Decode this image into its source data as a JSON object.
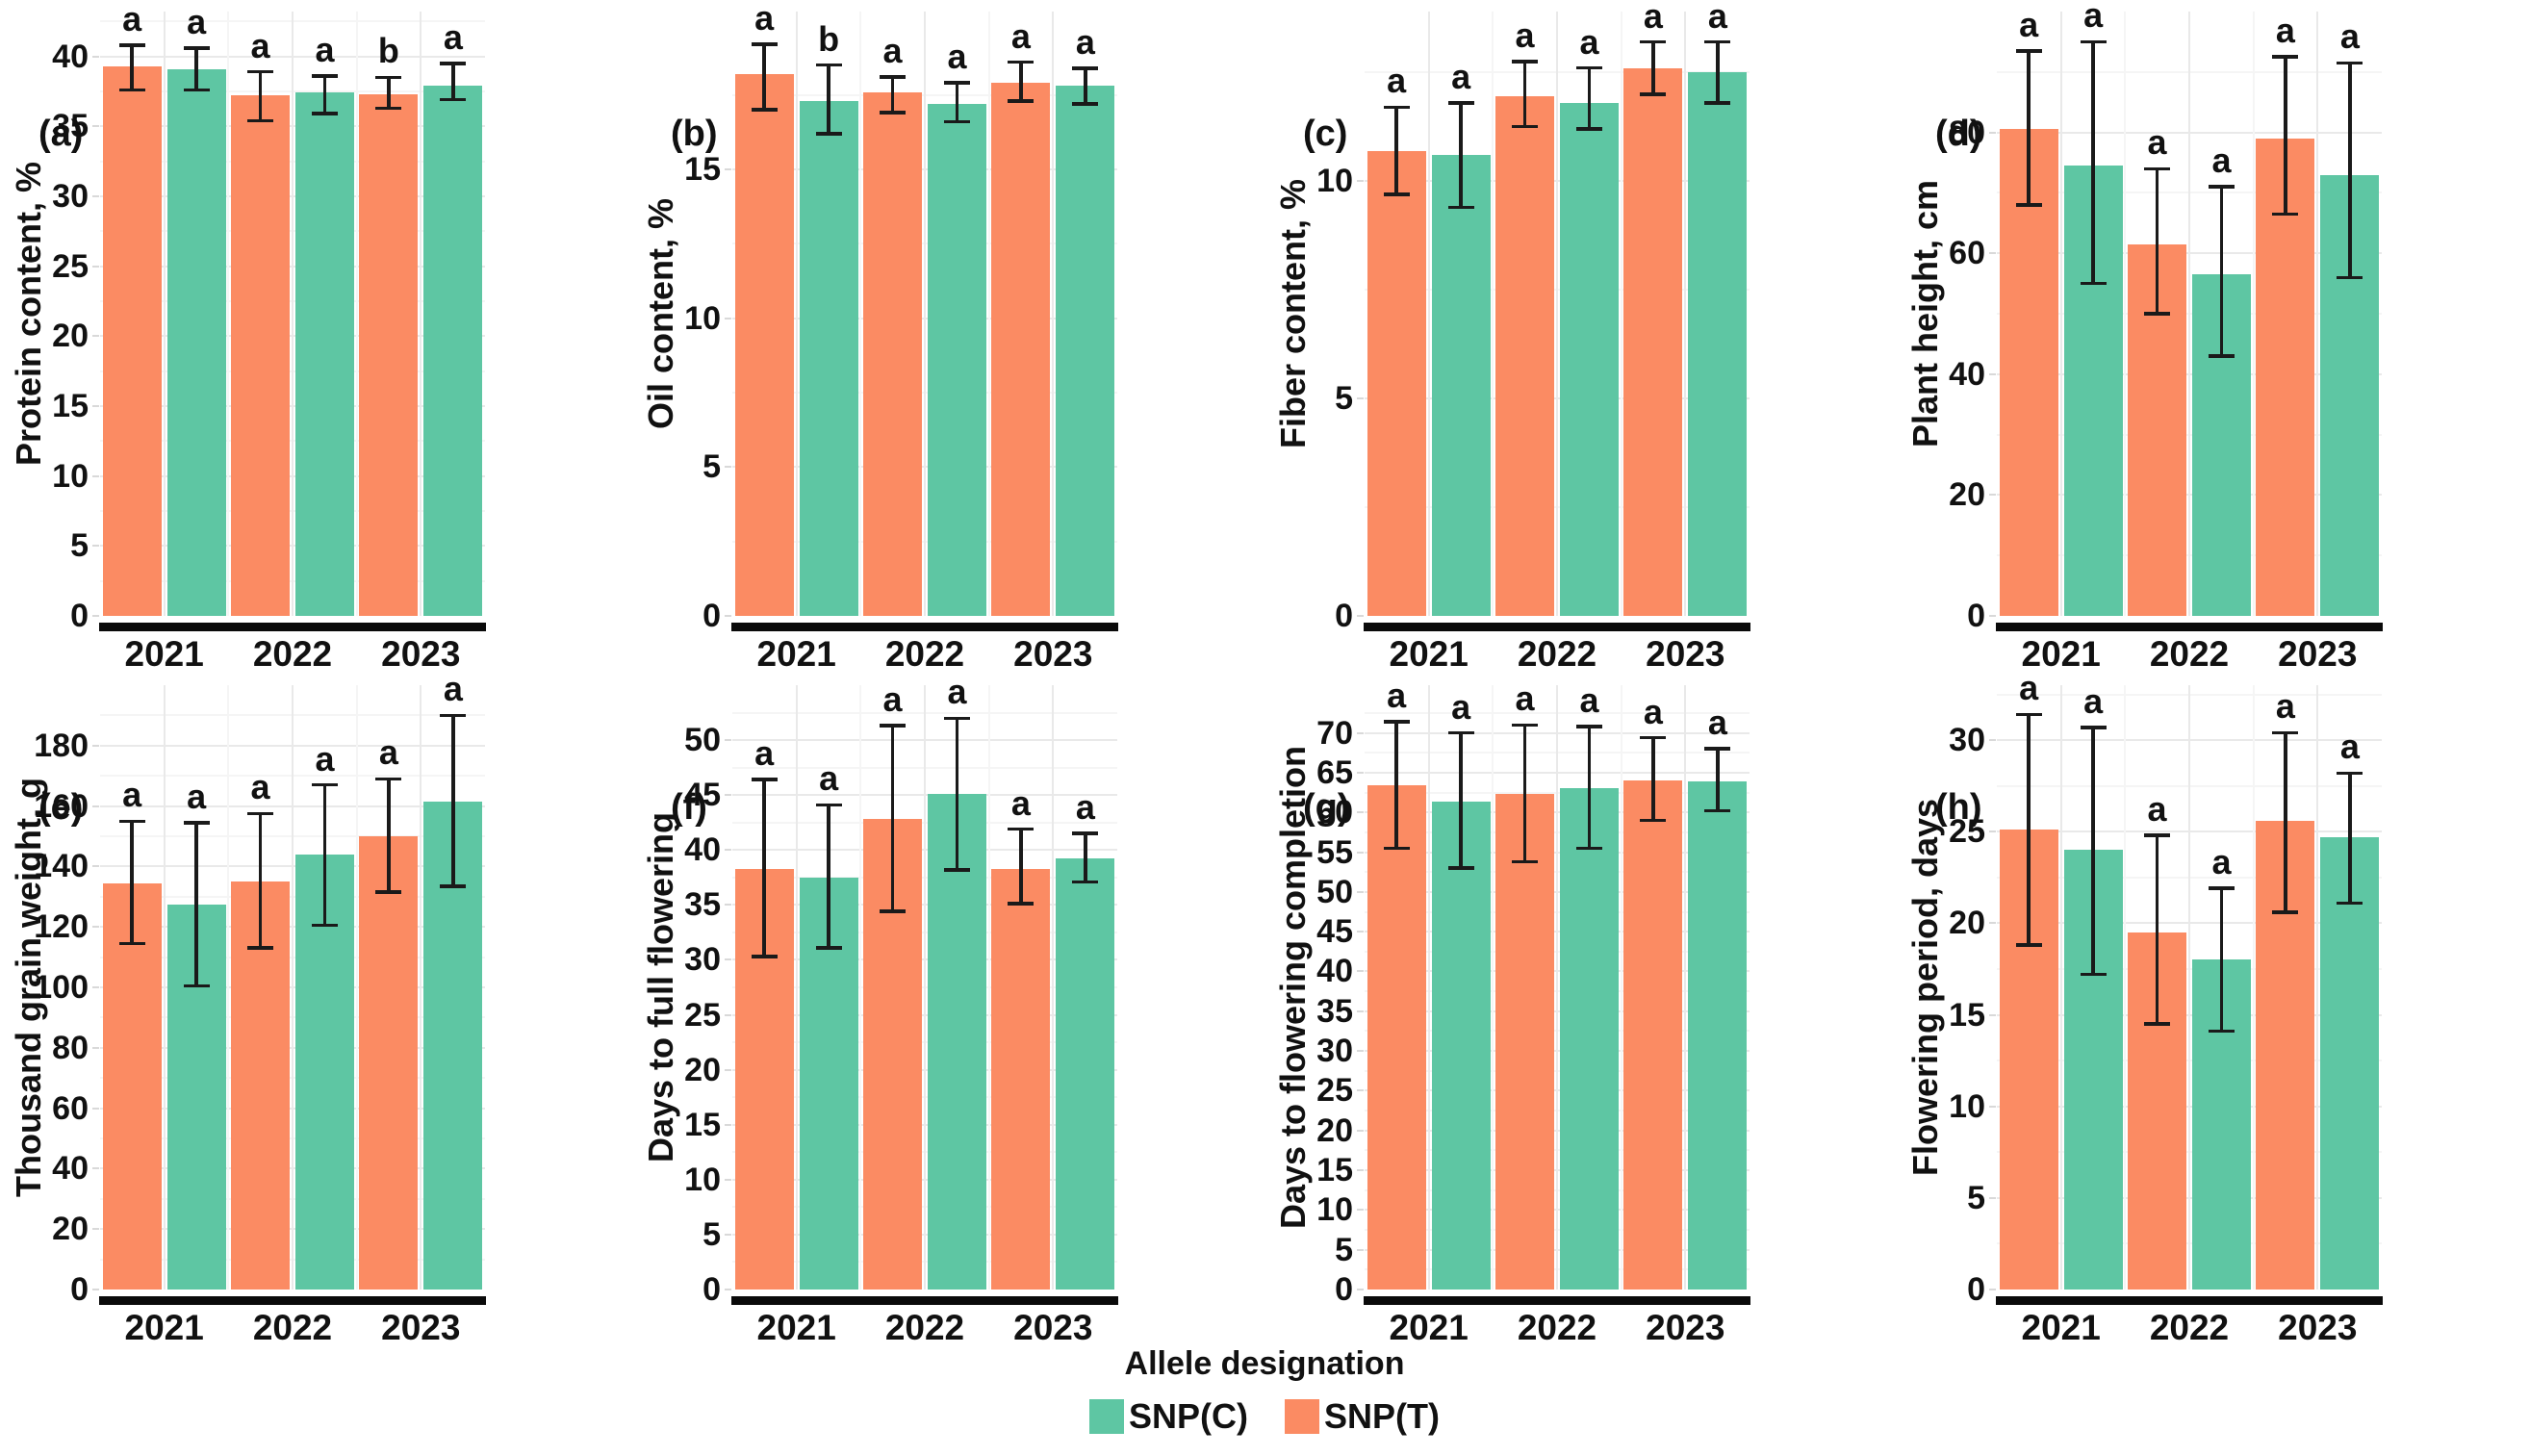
{
  "legend": {
    "title": "Allele designation",
    "items": [
      {
        "label": "SNP(C)",
        "color": "#5EC6A3"
      },
      {
        "label": "SNP(T)",
        "color": "#FB8B63"
      }
    ]
  },
  "colors": {
    "snp_t_orange": "#FB8B63",
    "snp_c_green": "#5EC6A3",
    "error_bar": "#1a1a1a",
    "axis_underline": "#0a0a0a",
    "grid_major": "#e9e9e9",
    "grid_minor": "#f5f5f5"
  },
  "chart_data": [
    {
      "type": "bar",
      "panel_label": "(a)",
      "ylabel": "Protein content, %",
      "categories": [
        "2021",
        "2022",
        "2023"
      ],
      "yticks": [
        0,
        5,
        10,
        15,
        20,
        25,
        30,
        35,
        40
      ],
      "tick_step": 5,
      "ylim": [
        0,
        43.2
      ],
      "series": [
        {
          "name": "SNP(T)",
          "values": [
            39.3,
            37.2,
            37.3
          ],
          "err_low": [
            37.6,
            35.4,
            36.3
          ],
          "err_high": [
            40.8,
            38.9,
            38.5
          ],
          "letters": [
            "a",
            "a",
            "b"
          ]
        },
        {
          "name": "SNP(C)",
          "values": [
            39.1,
            37.4,
            37.9
          ],
          "err_low": [
            37.6,
            35.9,
            36.9
          ],
          "err_high": [
            40.6,
            38.6,
            39.5
          ],
          "letters": [
            "a",
            "a",
            "a"
          ]
        }
      ]
    },
    {
      "type": "bar",
      "panel_label": "(b)",
      "ylabel": "Oil content, %",
      "categories": [
        "2021",
        "2022",
        "2023"
      ],
      "yticks": [
        0,
        5,
        10,
        15
      ],
      "tick_step": 5,
      "ylim": [
        0,
        20.3
      ],
      "series": [
        {
          "name": "SNP(T)",
          "values": [
            18.2,
            17.6,
            17.9
          ],
          "err_low": [
            17.0,
            16.9,
            17.3
          ],
          "err_high": [
            19.2,
            18.1,
            18.6
          ],
          "letters": [
            "a",
            "a",
            "a"
          ]
        },
        {
          "name": "SNP(C)",
          "values": [
            17.3,
            17.2,
            17.8
          ],
          "err_low": [
            16.2,
            16.6,
            17.2
          ],
          "err_high": [
            18.5,
            17.9,
            18.4
          ],
          "letters": [
            "b",
            "a",
            "a"
          ]
        }
      ]
    },
    {
      "type": "bar",
      "panel_label": "(c)",
      "ylabel": "Fiber content, %",
      "categories": [
        "2021",
        "2022",
        "2023"
      ],
      "yticks": [
        0,
        5,
        10
      ],
      "tick_step": 5,
      "ylim": [
        0,
        13.9
      ],
      "series": [
        {
          "name": "SNP(T)",
          "values": [
            10.7,
            11.95,
            12.6
          ],
          "err_low": [
            9.7,
            11.25,
            12.0
          ],
          "err_high": [
            11.7,
            12.75,
            13.2
          ],
          "letters": [
            "a",
            "a",
            "a"
          ]
        },
        {
          "name": "SNP(C)",
          "values": [
            10.6,
            11.8,
            12.5
          ],
          "err_low": [
            9.4,
            11.2,
            11.8
          ],
          "err_high": [
            11.8,
            12.6,
            13.2
          ],
          "letters": [
            "a",
            "a",
            "a"
          ]
        }
      ]
    },
    {
      "type": "bar",
      "panel_label": "(d)",
      "ylabel": "Plant height, cm",
      "categories": [
        "2021",
        "2022",
        "2023"
      ],
      "yticks": [
        0,
        20,
        40,
        60,
        80
      ],
      "tick_step": 20,
      "ylim": [
        0,
        100
      ],
      "series": [
        {
          "name": "SNP(T)",
          "values": [
            80.5,
            61.5,
            79.0
          ],
          "err_low": [
            68.0,
            50.0,
            66.5
          ],
          "err_high": [
            93.5,
            74.0,
            92.5
          ],
          "letters": [
            "a",
            "a",
            "a"
          ]
        },
        {
          "name": "SNP(C)",
          "values": [
            74.5,
            56.5,
            73.0
          ],
          "err_low": [
            55.0,
            43.0,
            56.0
          ],
          "err_high": [
            95.0,
            71.0,
            91.5
          ],
          "letters": [
            "a",
            "a",
            "a"
          ]
        }
      ]
    },
    {
      "type": "bar",
      "panel_label": "(e)",
      "ylabel": "Thousand grain weight, g",
      "categories": [
        "2021",
        "2022",
        "2023"
      ],
      "yticks": [
        0,
        20,
        40,
        60,
        80,
        100,
        120,
        140,
        160,
        180
      ],
      "tick_step": 20,
      "ylim": [
        0,
        200
      ],
      "series": [
        {
          "name": "SNP(T)",
          "values": [
            134.5,
            135.0,
            150.0
          ],
          "err_low": [
            114.5,
            113.0,
            131.5
          ],
          "err_high": [
            155.0,
            157.5,
            169.0
          ],
          "letters": [
            "a",
            "a",
            "a"
          ]
        },
        {
          "name": "SNP(C)",
          "values": [
            127.5,
            144.0,
            161.5
          ],
          "err_low": [
            100.5,
            120.5,
            133.5
          ],
          "err_high": [
            154.5,
            167.0,
            190.0
          ],
          "letters": [
            "a",
            "a",
            "a"
          ]
        }
      ]
    },
    {
      "type": "bar",
      "panel_label": "(f)",
      "ylabel": "Days to full flowering",
      "categories": [
        "2021",
        "2022",
        "2023"
      ],
      "yticks": [
        0,
        5,
        10,
        15,
        20,
        25,
        30,
        35,
        40,
        45,
        50
      ],
      "tick_step": 5,
      "ylim": [
        0,
        55
      ],
      "series": [
        {
          "name": "SNP(T)",
          "values": [
            38.3,
            42.8,
            38.3
          ],
          "err_low": [
            30.3,
            34.4,
            35.1
          ],
          "err_high": [
            46.4,
            51.3,
            41.9
          ],
          "letters": [
            "a",
            "a",
            "a"
          ]
        },
        {
          "name": "SNP(C)",
          "values": [
            37.5,
            45.1,
            39.2
          ],
          "err_low": [
            31.1,
            38.2,
            37.1
          ],
          "err_high": [
            44.1,
            52.0,
            41.5
          ],
          "letters": [
            "a",
            "a",
            "a"
          ]
        }
      ]
    },
    {
      "type": "bar",
      "panel_label": "(g)",
      "ylabel": "Days to flowering completion",
      "categories": [
        "2021",
        "2022",
        "2023"
      ],
      "yticks": [
        0,
        5,
        10,
        15,
        20,
        25,
        30,
        35,
        40,
        45,
        50,
        55,
        60,
        65,
        70
      ],
      "tick_step": 5,
      "ylim": [
        0,
        76
      ],
      "series": [
        {
          "name": "SNP(T)",
          "values": [
            63.4,
            62.3,
            64.0
          ],
          "err_low": [
            55.5,
            53.8,
            59.0
          ],
          "err_high": [
            71.4,
            71.0,
            69.4
          ],
          "letters": [
            "a",
            "a",
            "a"
          ]
        },
        {
          "name": "SNP(C)",
          "values": [
            61.3,
            63.0,
            63.9
          ],
          "err_low": [
            53.0,
            55.5,
            60.2
          ],
          "err_high": [
            70.0,
            70.8,
            68.0
          ],
          "letters": [
            "a",
            "a",
            "a"
          ]
        }
      ]
    },
    {
      "type": "bar",
      "panel_label": "(h)",
      "ylabel": "Flowering period, days",
      "categories": [
        "2021",
        "2022",
        "2023"
      ],
      "yticks": [
        0,
        5,
        10,
        15,
        20,
        25,
        30
      ],
      "tick_step": 5,
      "ylim": [
        0,
        33
      ],
      "series": [
        {
          "name": "SNP(T)",
          "values": [
            25.1,
            19.5,
            25.6
          ],
          "err_low": [
            18.8,
            14.5,
            20.6
          ],
          "err_high": [
            31.4,
            24.8,
            30.4
          ],
          "letters": [
            "a",
            "a",
            "a"
          ]
        },
        {
          "name": "SNP(C)",
          "values": [
            24.0,
            18.0,
            24.7
          ],
          "err_low": [
            17.2,
            14.1,
            21.1
          ],
          "err_high": [
            30.7,
            21.9,
            28.2
          ],
          "letters": [
            "a",
            "a",
            "a"
          ]
        }
      ]
    }
  ]
}
